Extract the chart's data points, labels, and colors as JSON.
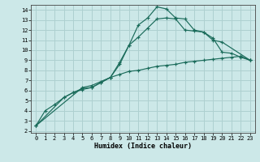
{
  "xlabel": "Humidex (Indice chaleur)",
  "xlim": [
    -0.5,
    23.5
  ],
  "ylim": [
    1.8,
    14.5
  ],
  "yticks": [
    2,
    3,
    4,
    5,
    6,
    7,
    8,
    9,
    10,
    11,
    12,
    13,
    14
  ],
  "xticks": [
    0,
    1,
    2,
    3,
    4,
    5,
    6,
    7,
    8,
    9,
    10,
    11,
    12,
    13,
    14,
    15,
    16,
    17,
    18,
    19,
    20,
    21,
    22,
    23
  ],
  "bg_color": "#cce8e8",
  "grid_color": "#aed0d0",
  "line_color": "#1a6b5a",
  "line1_x": [
    0,
    1,
    2,
    3,
    4,
    5,
    6,
    7,
    8,
    9,
    10,
    11,
    12,
    13,
    14,
    15,
    16,
    17,
    18,
    19,
    20,
    21,
    22,
    23
  ],
  "line1_y": [
    2.5,
    4.0,
    4.6,
    5.3,
    5.8,
    6.1,
    6.3,
    6.8,
    7.3,
    8.8,
    10.5,
    12.5,
    13.2,
    14.3,
    14.1,
    13.2,
    13.1,
    12.0,
    11.8,
    11.2,
    9.8,
    9.7,
    9.3,
    9.0
  ],
  "line2_x": [
    0,
    3,
    4,
    5,
    6,
    7,
    8,
    9,
    10,
    11,
    12,
    13,
    14,
    15,
    16,
    17,
    18,
    19,
    20,
    23
  ],
  "line2_y": [
    2.5,
    5.3,
    5.8,
    6.2,
    6.3,
    6.8,
    7.3,
    8.6,
    10.5,
    11.3,
    12.2,
    13.1,
    13.2,
    13.1,
    12.0,
    11.9,
    11.8,
    11.0,
    10.8,
    9.0
  ],
  "line3_x": [
    0,
    5,
    6,
    7,
    8,
    9,
    10,
    11,
    12,
    13,
    14,
    15,
    16,
    17,
    18,
    19,
    20,
    21,
    22,
    23
  ],
  "line3_y": [
    2.5,
    6.3,
    6.5,
    6.9,
    7.3,
    7.6,
    7.9,
    8.0,
    8.2,
    8.4,
    8.5,
    8.6,
    8.8,
    8.9,
    9.0,
    9.1,
    9.2,
    9.3,
    9.4,
    9.0
  ]
}
